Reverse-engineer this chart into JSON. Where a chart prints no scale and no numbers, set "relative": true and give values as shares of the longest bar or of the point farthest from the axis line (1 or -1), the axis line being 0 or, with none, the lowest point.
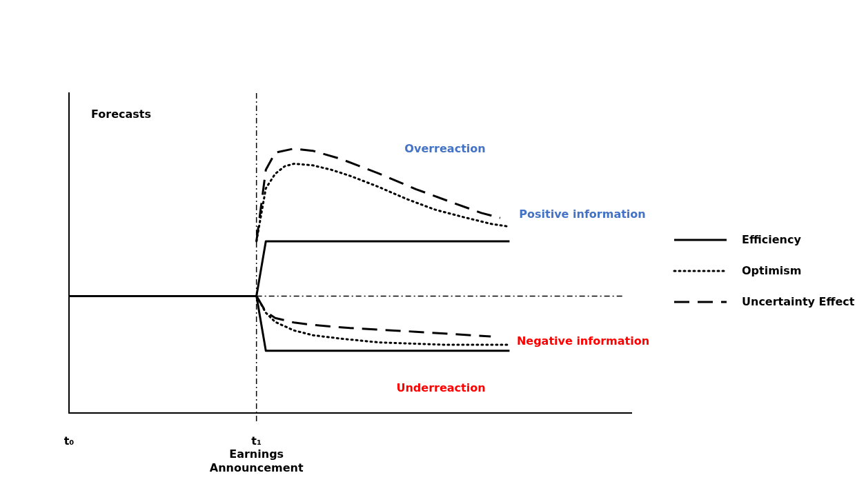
{
  "chart_data": {
    "type": "line",
    "relative": true,
    "ylabel": "Forecasts",
    "categories": [
      "t₀",
      null,
      null,
      null,
      null,
      null,
      null,
      null,
      null,
      null,
      null,
      null,
      null,
      null,
      null,
      null,
      null,
      null,
      null,
      null,
      "t₁\nEarnings\nAnnouncement",
      null,
      null,
      null,
      null,
      null,
      null,
      null,
      null,
      null,
      null,
      null,
      null,
      null,
      null,
      null,
      null,
      null,
      null,
      null,
      null,
      null,
      null,
      null,
      null,
      null,
      null,
      null,
      null,
      null,
      null,
      null,
      null,
      null,
      null,
      null,
      null,
      null,
      null,
      null,
      null
    ],
    "grid": false,
    "legend": "right",
    "marker": "none",
    "series": [
      {
        "name": "Efficiency",
        "color": "#000000",
        "line_style": "solid",
        "values": [
          0.443,
          null,
          null,
          null,
          null,
          null,
          null,
          null,
          null,
          null,
          null,
          null,
          null,
          null,
          null,
          null,
          null,
          null,
          null,
          null,
          0.443,
          0.65,
          null,
          null,
          null,
          null,
          null,
          null,
          null,
          null,
          null,
          null,
          null,
          null,
          null,
          null,
          null,
          null,
          null,
          null,
          null,
          null,
          null,
          null,
          null,
          null,
          null,
          0.65,
          null,
          null,
          null,
          null,
          null,
          null,
          null,
          null,
          null,
          null,
          null,
          null,
          null
        ]
      },
      {
        "name": "Optimism",
        "color": "#000000",
        "line_style": "dotted",
        "values": [
          null,
          null,
          null,
          null,
          null,
          null,
          null,
          null,
          null,
          null,
          null,
          null,
          null,
          null,
          null,
          null,
          null,
          null,
          null,
          null,
          0.65,
          0.85,
          0.905,
          0.933,
          0.943,
          null,
          0.937,
          null,
          0.92,
          null,
          0.897,
          null,
          null,
          0.856,
          null,
          null,
          0.81,
          null,
          null,
          0.77,
          null,
          null,
          0.742,
          null,
          null,
          0.716,
          null,
          0.705,
          null,
          null,
          null,
          null,
          null,
          null,
          null,
          null,
          null,
          null,
          null,
          null,
          null
        ]
      },
      {
        "name": "Uncertainty Effect",
        "color": "#000000",
        "line_style": "dashed",
        "values": [
          null,
          null,
          null,
          null,
          null,
          null,
          null,
          null,
          null,
          null,
          null,
          null,
          null,
          null,
          null,
          null,
          null,
          null,
          null,
          null,
          0.65,
          0.92,
          0.985,
          null,
          1.0,
          null,
          0.992,
          null,
          null,
          0.961,
          null,
          null,
          null,
          0.907,
          null,
          null,
          null,
          0.847,
          null,
          null,
          null,
          0.795,
          null,
          null,
          0.757,
          null,
          0.738,
          null,
          null,
          null,
          null,
          null,
          null,
          null,
          null,
          null,
          null,
          null,
          null,
          null,
          null
        ]
      },
      {
        "color": "#000000",
        "line_style": "solid",
        "values": [
          null,
          null,
          null,
          null,
          null,
          null,
          null,
          null,
          null,
          null,
          null,
          null,
          null,
          null,
          null,
          null,
          null,
          null,
          null,
          null,
          0.443,
          0.236,
          null,
          null,
          null,
          null,
          null,
          null,
          null,
          null,
          null,
          null,
          null,
          null,
          null,
          null,
          null,
          null,
          null,
          null,
          null,
          null,
          null,
          null,
          null,
          null,
          null,
          0.236,
          null,
          null,
          null,
          null,
          null,
          null,
          null,
          null,
          null,
          null,
          null,
          null,
          null
        ]
      },
      {
        "color": "#000000",
        "line_style": "dotted",
        "values": [
          null,
          null,
          null,
          null,
          null,
          null,
          null,
          null,
          null,
          null,
          null,
          null,
          null,
          null,
          null,
          null,
          null,
          null,
          null,
          null,
          0.443,
          0.38,
          0.345,
          null,
          0.313,
          null,
          0.295,
          null,
          null,
          0.282,
          null,
          null,
          null,
          0.268,
          null,
          null,
          null,
          null,
          null,
          null,
          0.259,
          null,
          null,
          null,
          null,
          null,
          null,
          0.259,
          null,
          null,
          null,
          null,
          null,
          null,
          null,
          null,
          null,
          null,
          null,
          null,
          null
        ]
      },
      {
        "color": "#000000",
        "line_style": "dashed",
        "values": [
          null,
          null,
          null,
          null,
          null,
          null,
          null,
          null,
          null,
          null,
          null,
          null,
          null,
          null,
          null,
          null,
          null,
          null,
          null,
          null,
          0.443,
          0.383,
          0.36,
          null,
          0.343,
          null,
          0.334,
          null,
          null,
          null,
          0.322,
          null,
          null,
          null,
          null,
          null,
          null,
          0.308,
          null,
          null,
          null,
          null,
          null,
          null,
          null,
          0.29,
          null,
          null,
          null,
          null,
          null,
          null,
          null,
          null,
          null,
          null,
          null,
          null,
          null,
          null,
          null
        ]
      }
    ],
    "ref_lines": [
      {
        "axis": "x",
        "value": "t₁\nEarnings\nAnnouncement",
        "line_style": "dashdot"
      },
      {
        "axis": "y",
        "value": 0.443,
        "line_style": "dashdot"
      }
    ],
    "annotations": [
      "Overreaction",
      "Positive information",
      "Negative information",
      "Underreaction"
    ]
  }
}
